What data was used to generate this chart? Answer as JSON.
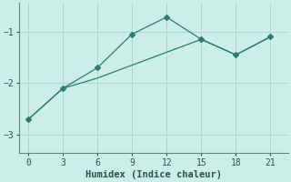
{
  "line1_x": [
    0,
    3,
    6,
    9,
    12,
    15,
    18,
    21
  ],
  "line1_y": [
    -2.7,
    -2.1,
    -1.7,
    -1.05,
    -0.72,
    -1.15,
    -1.45,
    -1.1
  ],
  "line2_x": [
    0,
    3,
    6,
    9,
    12,
    15,
    18,
    21
  ],
  "line2_y": [
    -2.7,
    -2.1,
    -1.9,
    -1.65,
    -1.4,
    -1.15,
    -1.45,
    -1.1
  ],
  "line_color": "#2a7d6f",
  "marker": "D",
  "marker_size": 3,
  "xlabel": "Humidex (Indice chaleur)",
  "xticks": [
    0,
    3,
    6,
    9,
    12,
    15,
    18,
    21
  ],
  "yticks": [
    -3,
    -2,
    -1
  ],
  "ylim": [
    -3.35,
    -0.45
  ],
  "xlim": [
    -0.8,
    22.5
  ],
  "background_color": "#cceee8",
  "grid_color": "#aad8d2",
  "font_family": "monospace",
  "xlabel_fontsize": 7.5,
  "tick_fontsize": 7,
  "linewidth": 0.9
}
